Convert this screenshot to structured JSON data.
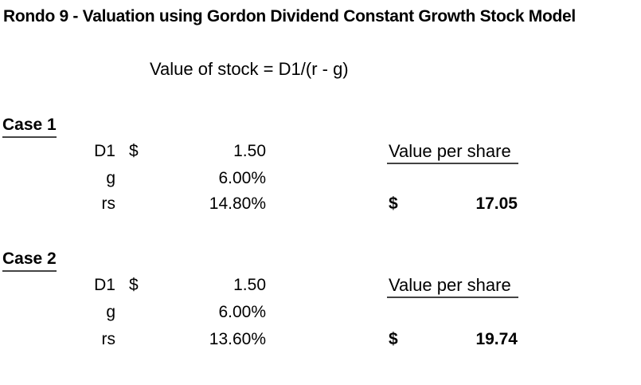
{
  "title": "Rondo 9 - Valuation using Gordon Dividend Constant Growth Stock Model",
  "formula": "Value of stock = D1/(r - g)",
  "cases": [
    {
      "label": "Case 1",
      "rows": [
        {
          "label": "D1",
          "currency": "$",
          "value": "1.50"
        },
        {
          "label": "g",
          "currency": "",
          "value": "6.00%"
        },
        {
          "label": "rs",
          "currency": "",
          "value": "14.80%"
        }
      ],
      "result_label": "Value per share",
      "result_currency": "$",
      "result_value": "17.05"
    },
    {
      "label": "Case 2",
      "rows": [
        {
          "label": "D1",
          "currency": "$",
          "value": "1.50"
        },
        {
          "label": "g",
          "currency": "",
          "value": "6.00%"
        },
        {
          "label": "rs",
          "currency": "",
          "value": "13.60%"
        }
      ],
      "result_label": "Value per share",
      "result_currency": "$",
      "result_value": "19.74"
    }
  ]
}
